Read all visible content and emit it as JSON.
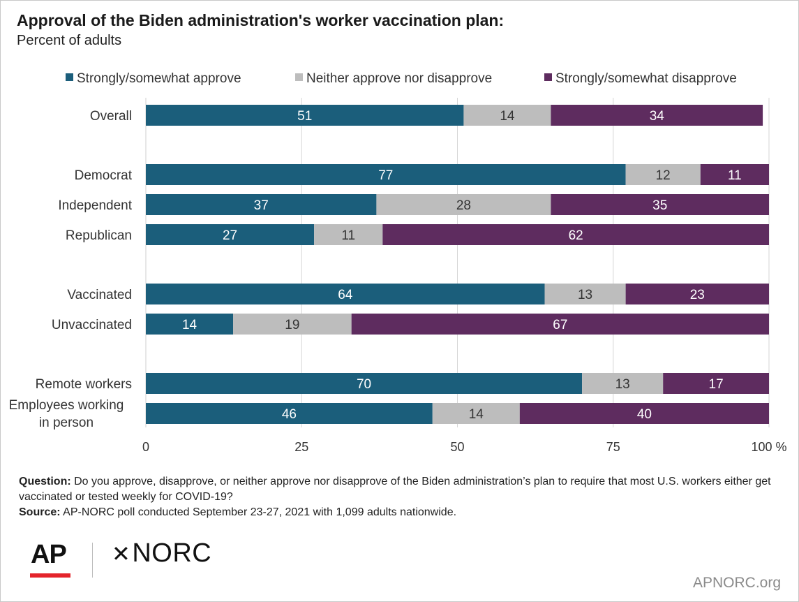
{
  "title": "Approval of the Biden administration's worker vaccination plan:",
  "subtitle": "Percent of adults",
  "colors": {
    "approve": "#1b5e7b",
    "neither": "#bdbdbd",
    "disapprove": "#5e2c5f",
    "grid": "#d6d6d6"
  },
  "chart_data": {
    "type": "bar",
    "orientation": "horizontal",
    "stacked": true,
    "xlim": [
      0,
      100
    ],
    "xticks": [
      "0",
      "25",
      "50",
      "75",
      "100 %"
    ],
    "tick_values": [
      0,
      25,
      50,
      75,
      100
    ],
    "grid": true,
    "legend_position": "top",
    "categories": [
      "Overall",
      "Democrat",
      "Independent",
      "Republican",
      "Vaccinated",
      "Unvaccinated",
      "Remote workers",
      "Employees working in person"
    ],
    "category_lines": [
      [
        "Overall"
      ],
      [
        "Democrat"
      ],
      [
        "Independent"
      ],
      [
        "Republican"
      ],
      [
        "Vaccinated"
      ],
      [
        "Unvaccinated"
      ],
      [
        "Remote workers"
      ],
      [
        "Employees working",
        "in person"
      ]
    ],
    "series": [
      {
        "name": "Strongly/somewhat approve",
        "color_key": "approve",
        "values": [
          51,
          77,
          37,
          27,
          64,
          14,
          70,
          46
        ]
      },
      {
        "name": "Neither approve nor disapprove",
        "color_key": "neither",
        "values": [
          14,
          12,
          28,
          11,
          13,
          19,
          13,
          14
        ]
      },
      {
        "name": "Strongly/somewhat disapprove",
        "color_key": "disapprove",
        "values": [
          34,
          11,
          35,
          62,
          23,
          67,
          17,
          40
        ]
      }
    ]
  },
  "footnote": {
    "question_label": "Question:",
    "question_text": " Do you approve, disapprove, or neither approve nor disapprove of the Biden administration’s plan to require that most U.S. workers either get vaccinated or tested weekly for COVID-19?",
    "source_label": "Source:",
    "source_text": " AP-NORC poll conducted September 23-27, 2021 with 1,099 adults nationwide."
  },
  "logos": {
    "ap": "AP",
    "norc": "NORC",
    "norc_mark": "✕"
  },
  "website": "APNORC.org"
}
